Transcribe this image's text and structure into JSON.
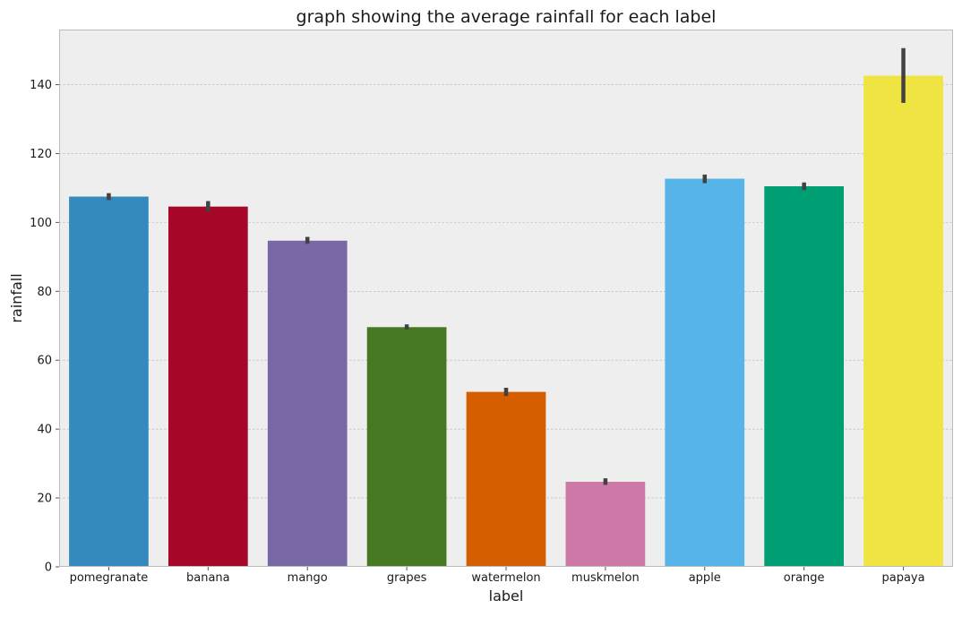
{
  "chart_data": {
    "type": "bar",
    "title": "graph showing the average rainfall for each label",
    "xlabel": "label",
    "ylabel": "rainfall",
    "ylim": [
      0,
      156
    ],
    "yticks": [
      0,
      20,
      40,
      60,
      80,
      100,
      120,
      140
    ],
    "grid": true,
    "legend": "none",
    "categories": [
      "pomegranate",
      "banana",
      "mango",
      "grapes",
      "watermelon",
      "muskmelon",
      "apple",
      "orange",
      "papaya"
    ],
    "values": [
      107.5,
      104.6,
      94.7,
      69.6,
      50.8,
      24.7,
      112.7,
      110.5,
      142.6
    ],
    "error_bars": [
      [
        106.5,
        108.5
      ],
      [
        103.2,
        106.2
      ],
      [
        93.8,
        95.8
      ],
      [
        68.9,
        70.4
      ],
      [
        49.6,
        52.0
      ],
      [
        23.8,
        25.7
      ],
      [
        111.4,
        113.9
      ],
      [
        109.4,
        111.6
      ],
      [
        134.7,
        150.6
      ]
    ],
    "colors": [
      "#348ABD",
      "#A60628",
      "#7A68A6",
      "#467821",
      "#D55E00",
      "#CC79A7",
      "#56B4E9",
      "#009E73",
      "#F0E442"
    ],
    "background_color": "#EEEEEE",
    "grid_color": "#B2B2B2",
    "error_bar_color": "#424242"
  }
}
